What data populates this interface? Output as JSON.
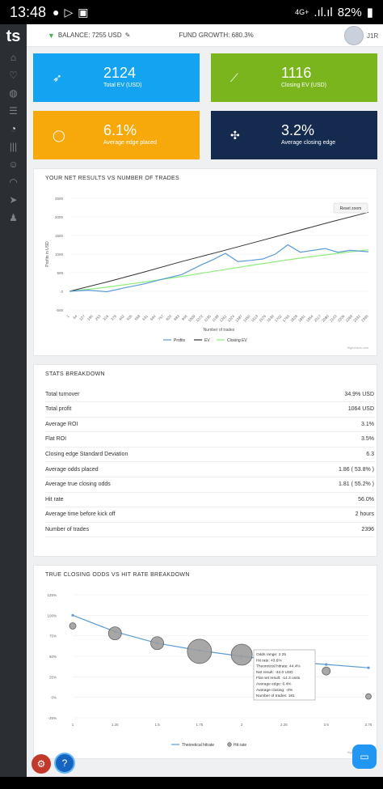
{
  "status": {
    "time": "13:48",
    "battery": "82%",
    "network": "4G+"
  },
  "sidebar": {
    "logo": "ts",
    "items": [
      "home-icon",
      "heart-icon",
      "globe-icon",
      "list-icon",
      "pie-icon",
      "bars-icon",
      "users-icon",
      "gauge-icon",
      "send-icon",
      "user-icon"
    ]
  },
  "topbar": {
    "balance": "BALANCE: 7255 USD",
    "fund_growth": "FUND GROWTH: 680.3%",
    "user": "J1R"
  },
  "cards": [
    {
      "value": "2124",
      "label": "Total EV (USD)",
      "color": "#13a3f0"
    },
    {
      "value": "1116",
      "label": "Closing EV (USD)",
      "color": "#7ab51e"
    },
    {
      "value": "6.1%",
      "label": "Average edge placed",
      "color": "#f7a90c"
    },
    {
      "value": "3.2%",
      "label": "Average closing edge",
      "color": "#142a4e"
    }
  ],
  "net_chart": {
    "title": "YOUR NET RESULTS VS NUMBER OF TRADES",
    "reset": "Reset zoom",
    "ylabel": "Profits in USD",
    "xlabel": "Number of trades",
    "credit": "Highcharts.com",
    "y_ticks": [
      "2500",
      "2000",
      "1500",
      "1000",
      "500",
      "0",
      "-500"
    ],
    "x_ticks": [
      "1",
      "64",
      "127",
      "190",
      "253",
      "316",
      "379",
      "442",
      "505",
      "568",
      "631",
      "694",
      "757",
      "820",
      "883",
      "946",
      "1009",
      "1072",
      "1135",
      "1198",
      "1261",
      "1324",
      "1387",
      "1450",
      "1513",
      "1576",
      "1639",
      "1702",
      "1765",
      "1828",
      "1891",
      "1954",
      "2017",
      "2080",
      "2143",
      "2206",
      "2269",
      "2332",
      "2395"
    ],
    "legend": [
      "Profits",
      "EV",
      "Closing EV"
    ]
  },
  "chart_data": [
    {
      "type": "line",
      "title": "YOUR NET RESULTS VS NUMBER OF TRADES",
      "xlabel": "Number of trades",
      "ylabel": "Profits in USD",
      "ylim": [
        -500,
        2500
      ],
      "xlim": [
        1,
        2396
      ],
      "series": [
        {
          "name": "Profits",
          "color": "#5b9bd5",
          "x": [
            1,
            150,
            300,
            450,
            600,
            750,
            900,
            1050,
            1150,
            1250,
            1350,
            1450,
            1550,
            1650,
            1750,
            1850,
            1950,
            2050,
            2150,
            2250,
            2396
          ],
          "y": [
            0,
            30,
            -10,
            100,
            200,
            330,
            450,
            700,
            850,
            1020,
            800,
            830,
            870,
            1000,
            1250,
            1050,
            1100,
            1150,
            1050,
            1100,
            1064
          ]
        },
        {
          "name": "EV",
          "color": "#333333",
          "x": [
            1,
            300,
            600,
            900,
            1200,
            1500,
            1800,
            2100,
            2396
          ],
          "y": [
            0,
            250,
            520,
            800,
            1060,
            1330,
            1600,
            1870,
            2124
          ]
        },
        {
          "name": "Closing EV",
          "color": "#90ed7d",
          "x": [
            1,
            300,
            600,
            900,
            1200,
            1500,
            1800,
            2100,
            2396
          ],
          "y": [
            0,
            110,
            250,
            400,
            560,
            720,
            870,
            1000,
            1116
          ]
        }
      ],
      "grid": true,
      "legend": "bottom"
    },
    {
      "type": "scatter",
      "title": "TRUE CLOSING ODDS VS HIT RATE BREAKDOWN",
      "x_ticks": [
        "1",
        "1.25",
        "1.5",
        "1.75",
        "2",
        "2.25",
        "2.5",
        "2.75"
      ],
      "y_ticks": [
        "125%",
        "100%",
        "75%",
        "50%",
        "25%",
        "0%",
        "-25%"
      ],
      "ylim": [
        -25,
        125
      ],
      "xlim": [
        1,
        2.75
      ],
      "series": [
        {
          "name": "Theoretical hitrate",
          "color": "#5b9bd5",
          "x": [
            1,
            1.25,
            1.5,
            1.75,
            2,
            2.25,
            2.5,
            2.75
          ],
          "y": [
            100,
            80,
            66,
            57,
            50,
            44,
            40,
            36
          ]
        },
        {
          "name": "Hit rate",
          "color": "#999999",
          "x": [
            1,
            1.25,
            1.5,
            1.75,
            2,
            2.25,
            2.5,
            2.75
          ],
          "y": [
            87,
            78,
            66,
            56,
            52,
            43.6,
            32,
            1
          ]
        }
      ],
      "legend": "bottom"
    }
  ],
  "stats": {
    "title": "STATS BREAKDOWN",
    "rows": [
      {
        "k": "Total turnover",
        "v": "34.9% USD"
      },
      {
        "k": "Total profit",
        "v": "1064 USD"
      },
      {
        "k": "Average ROI",
        "v": "3.1%"
      },
      {
        "k": "Flat ROI",
        "v": "3.5%"
      },
      {
        "k": "Closing edge Standard Deviation",
        "v": "6.3"
      },
      {
        "k": "Average odds placed",
        "v": "1.86 ( 53.8% )"
      },
      {
        "k": "Average true closing odds",
        "v": "1.81 ( 55.2% )"
      },
      {
        "k": "Hit rate",
        "v": "56.0%"
      },
      {
        "k": "Average time before kick off",
        "v": "2 hours"
      },
      {
        "k": "Number of trades",
        "v": "2396"
      }
    ]
  },
  "odds_chart": {
    "title": "TRUE CLOSING ODDS VS HIT RATE BREAKDOWN",
    "credit": "Highcharts.com",
    "legend": [
      "Theoretical hitrate",
      "Hit rate"
    ],
    "tooltip": [
      "Odds range: 2.25",
      "Hit rate: 43.6%",
      "Theoretical hitrate: 44.4%",
      "Net result: -32.0 USD",
      "Flat net result: -14.3 units",
      "Average edge: 6.4%",
      "Average closing: -4%",
      "Number of trades: 181"
    ]
  }
}
